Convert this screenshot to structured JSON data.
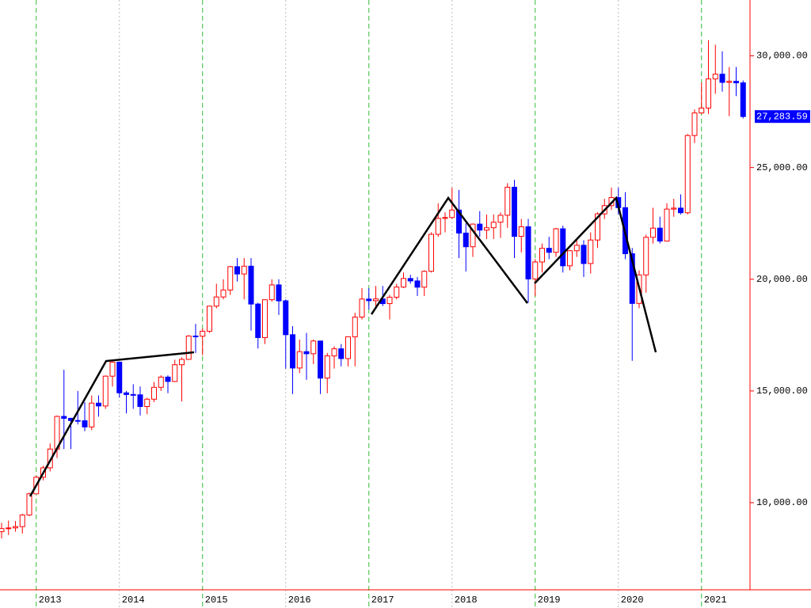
{
  "chart_data": {
    "type": "candlestick",
    "categories": [
      null,
      null,
      null,
      null,
      null,
      "2013",
      null,
      null,
      null,
      null,
      null,
      null,
      null,
      null,
      null,
      null,
      null,
      "2014",
      null,
      null,
      null,
      null,
      null,
      null,
      null,
      null,
      null,
      null,
      null,
      "2015",
      null,
      null,
      null,
      null,
      null,
      null,
      null,
      null,
      null,
      null,
      null,
      "2016",
      null,
      null,
      null,
      null,
      null,
      null,
      null,
      null,
      null,
      null,
      null,
      "2017",
      null,
      null,
      null,
      null,
      null,
      null,
      null,
      null,
      null,
      null,
      null,
      "2018",
      null,
      null,
      null,
      null,
      null,
      null,
      null,
      null,
      null,
      null,
      null,
      "2019",
      null,
      null,
      null,
      null,
      null,
      null,
      null,
      null,
      null,
      null,
      null,
      "2020",
      null,
      null,
      null,
      null,
      null,
      null,
      null,
      null,
      null,
      null,
      null,
      "2021",
      null,
      null,
      null,
      null,
      null,
      null
    ],
    "open": [
      8700,
      8840,
      8870,
      8928,
      9446,
      10395,
      11139,
      11559,
      12398,
      13861,
      13775,
      13677,
      13668,
      13389,
      14456,
      14328,
      15662,
      16291,
      14915,
      14841,
      14828,
      14304,
      14632,
      15162,
      15621,
      15425,
      16174,
      16414,
      17460,
      17451,
      17674,
      18798,
      19207,
      19520,
      20563,
      20236,
      20585,
      18890,
      17388,
      19083,
      19747,
      19034,
      17518,
      16027,
      16759,
      16666,
      17235,
      15576,
      16569,
      16887,
      16450,
      17425,
      18308,
      19114,
      19041,
      19119,
      18909,
      19197,
      19651,
      20033,
      19925,
      19646,
      20356,
      22012,
      22725,
      22765,
      23098,
      22068,
      21454,
      22468,
      22202,
      22305,
      22554,
      22865,
      24120,
      21920,
      22351,
      20015,
      20773,
      21385,
      21206,
      22259,
      20601,
      21276,
      21521,
      20704,
      21756,
      22927,
      23294,
      23657,
      23205,
      21143,
      18917,
      20194,
      21878,
      22288,
      21710,
      23140,
      23185,
      22977,
      26434,
      27444,
      27663,
      28966,
      29179,
      28813,
      28860,
      28792
    ],
    "high": [
      9100,
      9200,
      9180,
      9500,
      10450,
      11200,
      11650,
      12650,
      13900,
      15950,
      13800,
      15000,
      14500,
      14800,
      14800,
      15700,
      16320,
      16160,
      15000,
      15300,
      15200,
      14700,
      15400,
      15700,
      15700,
      16400,
      16500,
      17500,
      18000,
      17800,
      18800,
      19800,
      20000,
      20600,
      20950,
      20950,
      20950,
      18950,
      19100,
      20000,
      20000,
      19100,
      17900,
      17300,
      17600,
      17300,
      17250,
      16700,
      17000,
      17100,
      17450,
      18500,
      19600,
      19600,
      19700,
      19700,
      19300,
      19800,
      20300,
      20200,
      20100,
      20400,
      22100,
      23400,
      23000,
      24100,
      24000,
      22500,
      22500,
      23050,
      22900,
      22900,
      23000,
      24300,
      24450,
      22700,
      22700,
      20900,
      21600,
      21900,
      22300,
      22400,
      21300,
      21800,
      21750,
      22100,
      23000,
      23600,
      24100,
      24100,
      23900,
      21400,
      20400,
      22000,
      23200,
      22800,
      23400,
      23600,
      23800,
      26500,
      27600,
      28800,
      30700,
      30500,
      30200,
      29500,
      29500,
      28900
    ],
    "low": [
      8400,
      8550,
      8700,
      8620,
      9400,
      10390,
      11000,
      11400,
      12000,
      12400,
      12400,
      13500,
      13200,
      13250,
      13850,
      14200,
      15200,
      14700,
      13995,
      14200,
      13900,
      13960,
      14500,
      15000,
      14900,
      15400,
      14530,
      16400,
      16700,
      16600,
      17600,
      18700,
      19100,
      19300,
      19900,
      19100,
      17700,
      16900,
      17100,
      19000,
      18400,
      16000,
      14860,
      15800,
      15500,
      16200,
      14860,
      14900,
      16000,
      16100,
      16100,
      16100,
      18200,
      18650,
      18800,
      18800,
      18200,
      19100,
      19600,
      19800,
      19250,
      19250,
      20300,
      21900,
      22100,
      22700,
      20950,
      20350,
      21000,
      21900,
      21800,
      21800,
      21850,
      22300,
      20950,
      21200,
      18950,
      19250,
      20300,
      20900,
      21000,
      20300,
      20400,
      21000,
      20100,
      20250,
      21400,
      22700,
      23100,
      22900,
      20900,
      16350,
      18700,
      19400,
      21600,
      21600,
      21700,
      22800,
      22900,
      22900,
      26100,
      27400,
      27400,
      28300,
      28400,
      27300,
      28200,
      27200
    ],
    "close": [
      8840,
      8870,
      8928,
      9446,
      10395,
      11139,
      11559,
      12398,
      13861,
      13775,
      13677,
      13668,
      13389,
      14456,
      14328,
      15662,
      16291,
      14915,
      14841,
      14828,
      14304,
      14632,
      15162,
      15621,
      15425,
      16174,
      16414,
      17460,
      17451,
      17674,
      18798,
      19207,
      19520,
      20563,
      20236,
      20585,
      18890,
      17388,
      19083,
      19747,
      19034,
      17518,
      16027,
      16759,
      16666,
      17235,
      15576,
      16569,
      16887,
      16450,
      17425,
      18308,
      19114,
      19041,
      19119,
      18909,
      19197,
      19651,
      20033,
      19925,
      19646,
      20356,
      22012,
      22725,
      22765,
      23098,
      22068,
      21454,
      22468,
      22202,
      22305,
      22554,
      22865,
      24120,
      21920,
      22351,
      20015,
      20773,
      21385,
      21206,
      22259,
      20601,
      21276,
      21521,
      20704,
      21756,
      22927,
      23294,
      23657,
      23205,
      21143,
      18917,
      20194,
      21878,
      22288,
      21710,
      23140,
      23185,
      22977,
      26434,
      27444,
      27663,
      28966,
      29179,
      28813,
      28860,
      28792,
      27283.59
    ],
    "up_color": "#ff0000",
    "down_color": "#0000ff",
    "ylim": [
      6100,
      32500
    ],
    "yticks": [
      {
        "value": 10000,
        "label": "10,000.00"
      },
      {
        "value": 15000,
        "label": "15,000.00"
      },
      {
        "value": 20000,
        "label": "20,000.00"
      },
      {
        "value": 25000,
        "label": "25,000.00"
      },
      {
        "value": 30000,
        "label": "30,000.00"
      }
    ],
    "last_price": {
      "value": 27283.59,
      "label": "27,283.59"
    }
  }
}
